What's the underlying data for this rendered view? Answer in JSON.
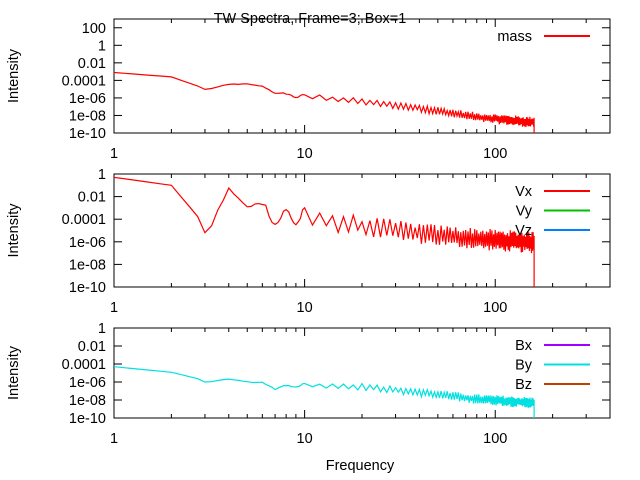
{
  "title": "TW Spectra, Frame=3; Box=1",
  "xlabel": "Frequency",
  "chart_data": [
    {
      "type": "line",
      "panel": "top",
      "xscale": "log",
      "yscale": "log",
      "xlim": [
        1,
        400
      ],
      "ylim": [
        1e-10,
        1000
      ],
      "ylabel": "Intensity",
      "xticks": [
        {
          "value": 1,
          "label": "1"
        },
        {
          "value": 10,
          "label": "10"
        },
        {
          "value": 100,
          "label": "100"
        }
      ],
      "yticks": [
        {
          "value": 100,
          "label": "100"
        },
        {
          "value": 1,
          "label": "1"
        },
        {
          "value": 0.01,
          "label": "0.01"
        },
        {
          "value": 0.0001,
          "label": "0.0001"
        },
        {
          "value": 1e-06,
          "label": "1e-06"
        },
        {
          "value": 1e-08,
          "label": "1e-08"
        },
        {
          "value": 1e-10,
          "label": "1e-10"
        }
      ],
      "legend_position": "top-right",
      "series": [
        {
          "name": "mass",
          "color": "#ff0000",
          "points": [
            [
              1,
              0.0008
            ],
            [
              2,
              0.00025
            ],
            [
              3,
              1.2e-05
            ],
            [
              5,
              6e-05
            ],
            [
              8,
              2.5e-06
            ],
            [
              12,
              1.5e-06
            ],
            [
              20,
              5e-07
            ],
            [
              40,
              1e-07
            ],
            [
              80,
              1e-08
            ],
            [
              150,
              3e-09
            ],
            [
              160,
              3e-09
            ]
          ],
          "cutoff": 160,
          "osc_start": 3,
          "osc_amp_decades": [
            0.15,
            0.9
          ]
        }
      ]
    },
    {
      "type": "line",
      "panel": "middle",
      "xscale": "log",
      "yscale": "log",
      "xlim": [
        1,
        400
      ],
      "ylim": [
        1e-10,
        1
      ],
      "ylabel": "Intensity",
      "xticks": [
        {
          "value": 1,
          "label": "1"
        },
        {
          "value": 10,
          "label": "10"
        },
        {
          "value": 100,
          "label": "100"
        }
      ],
      "yticks": [
        {
          "value": 1,
          "label": "1"
        },
        {
          "value": 0.01,
          "label": "0.01"
        },
        {
          "value": 0.0001,
          "label": "0.0001"
        },
        {
          "value": 1e-06,
          "label": "1e-06"
        },
        {
          "value": 1e-08,
          "label": "1e-08"
        },
        {
          "value": 1e-10,
          "label": "1e-10"
        }
      ],
      "legend_position": "top-right",
      "series": [
        {
          "name": "Vx",
          "color": "#ff0000",
          "points": [
            [
              1,
              0.5
            ],
            [
              2,
              0.1
            ],
            [
              3,
              3e-05
            ],
            [
              4,
              0.02
            ],
            [
              5,
              0.01
            ],
            [
              7,
              0.0003
            ],
            [
              10,
              0.0003
            ],
            [
              20,
              5e-05
            ],
            [
              50,
              8e-06
            ],
            [
              100,
              3e-06
            ],
            [
              160,
              2e-06
            ]
          ],
          "cutoff": 160,
          "osc_start": 3,
          "osc_amp_decades": [
            1.2,
            1.4
          ]
        },
        {
          "name": "Vy",
          "color": "#00c000",
          "points": []
        },
        {
          "name": "Vz",
          "color": "#0080ff",
          "points": []
        }
      ]
    },
    {
      "type": "line",
      "panel": "bottom",
      "xscale": "log",
      "yscale": "log",
      "xlim": [
        1,
        400
      ],
      "ylim": [
        1e-10,
        1
      ],
      "ylabel": "Intensity",
      "xticks": [
        {
          "value": 1,
          "label": "1"
        },
        {
          "value": 10,
          "label": "10"
        },
        {
          "value": 100,
          "label": "100"
        }
      ],
      "yticks": [
        {
          "value": 1,
          "label": "1"
        },
        {
          "value": 0.01,
          "label": "0.01"
        },
        {
          "value": 0.0001,
          "label": "0.0001"
        },
        {
          "value": 1e-06,
          "label": "1e-06"
        },
        {
          "value": 1e-08,
          "label": "1e-08"
        },
        {
          "value": 1e-10,
          "label": "1e-10"
        }
      ],
      "legend_position": "top-right",
      "series": [
        {
          "name": "Bx",
          "color": "#a000ff",
          "points": []
        },
        {
          "name": "By",
          "color": "#00e0e0",
          "points": [
            [
              1,
              5e-05
            ],
            [
              2,
              1.2e-05
            ],
            [
              3,
              1.5e-06
            ],
            [
              5,
              2e-06
            ],
            [
              7,
              3e-07
            ],
            [
              10,
              6e-07
            ],
            [
              20,
              4e-07
            ],
            [
              40,
              1e-07
            ],
            [
              80,
              2e-08
            ],
            [
              160,
              8e-09
            ]
          ],
          "cutoff": 160,
          "osc_start": 3,
          "osc_amp_decades": [
            0.2,
            0.9
          ]
        },
        {
          "name": "Bz",
          "color": "#c04000",
          "points": []
        }
      ]
    }
  ]
}
